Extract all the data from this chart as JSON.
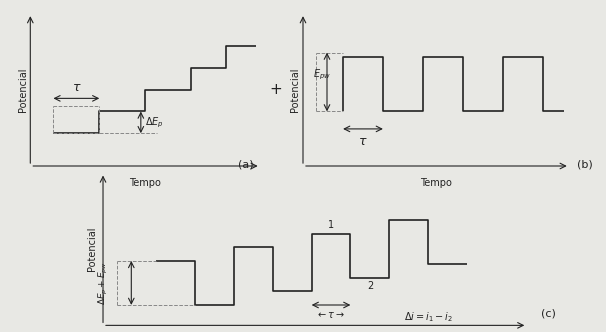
{
  "bg_color": "#e8e8e4",
  "panel_bg": "#f8f8f6",
  "line_color": "#222222",
  "dashed_color": "#888888",
  "xlabel": "Tempo",
  "ylabel": "Potencial",
  "label_a": "(a)",
  "label_b": "(b)",
  "label_c": "(c)",
  "plus_symbol": "+",
  "font_size_label": 8,
  "font_size_axis": 7,
  "font_size_annot": 7
}
